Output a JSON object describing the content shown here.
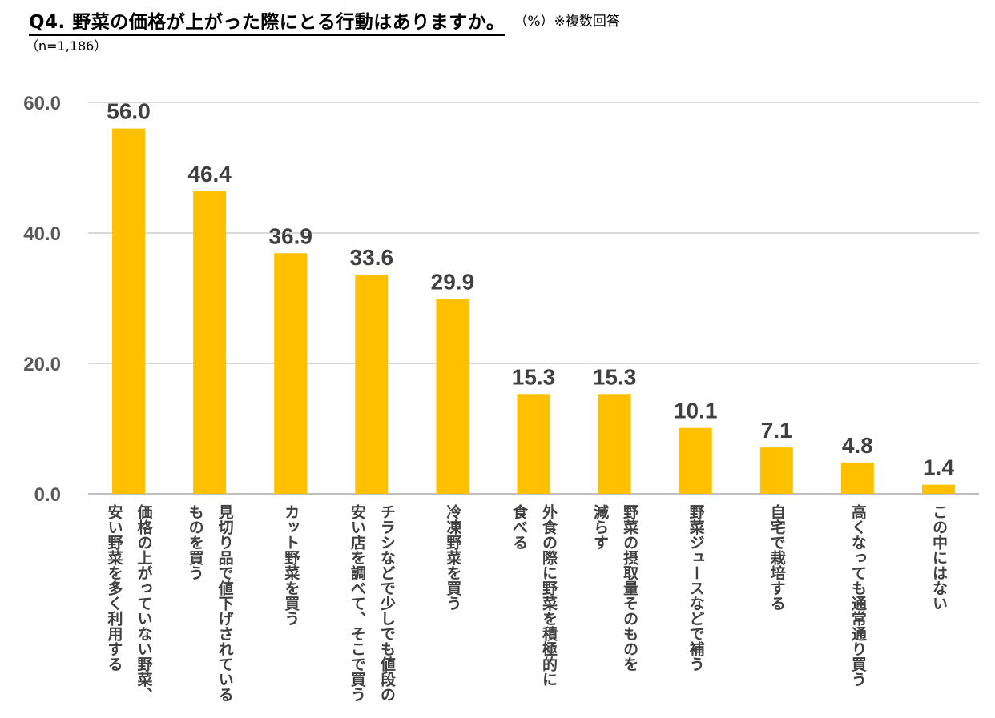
{
  "header": {
    "title": "Q4. 野菜の価格が上がった際にとる行動はありますか。",
    "unit_note": "（%）※複数回答",
    "sample_size": "（n=1,186）"
  },
  "colors": {
    "bar": "#FFC000",
    "grid": "#D9D9D9",
    "axis": "#BFBFBF"
  },
  "chart_data": {
    "type": "bar",
    "title": "Q4. 野菜の価格が上がった際にとる行動はありますか。",
    "xlabel": "",
    "ylabel": "",
    "ylim": [
      0,
      60
    ],
    "yticks": [
      "0.0",
      "20.0",
      "40.0",
      "60.0"
    ],
    "grid": true,
    "legend": "none",
    "categories": [
      "価格の上がっていない野菜、\n安い野菜を多く利用する",
      "見切り品で値下げされている\nものを買う",
      "カット野菜を買う",
      "チラシなどで少しでも値段の\n安い店を調べて、そこで買う",
      "冷凍野菜を買う",
      "外食の際に野菜を積極的に\n食べる",
      "野菜の摂取量そのものを\n減らす",
      "野菜ジュースなどで補う",
      "自宅で栽培する",
      "高くなっても通常通り買う",
      "この中にはない"
    ],
    "values": [
      56.0,
      46.4,
      36.9,
      33.6,
      29.9,
      15.3,
      15.3,
      10.1,
      7.1,
      4.8,
      1.4
    ],
    "value_labels": [
      "56.0",
      "46.4",
      "36.9",
      "33.6",
      "29.9",
      "15.3",
      "15.3",
      "10.1",
      "7.1",
      "4.8",
      "1.4"
    ]
  }
}
